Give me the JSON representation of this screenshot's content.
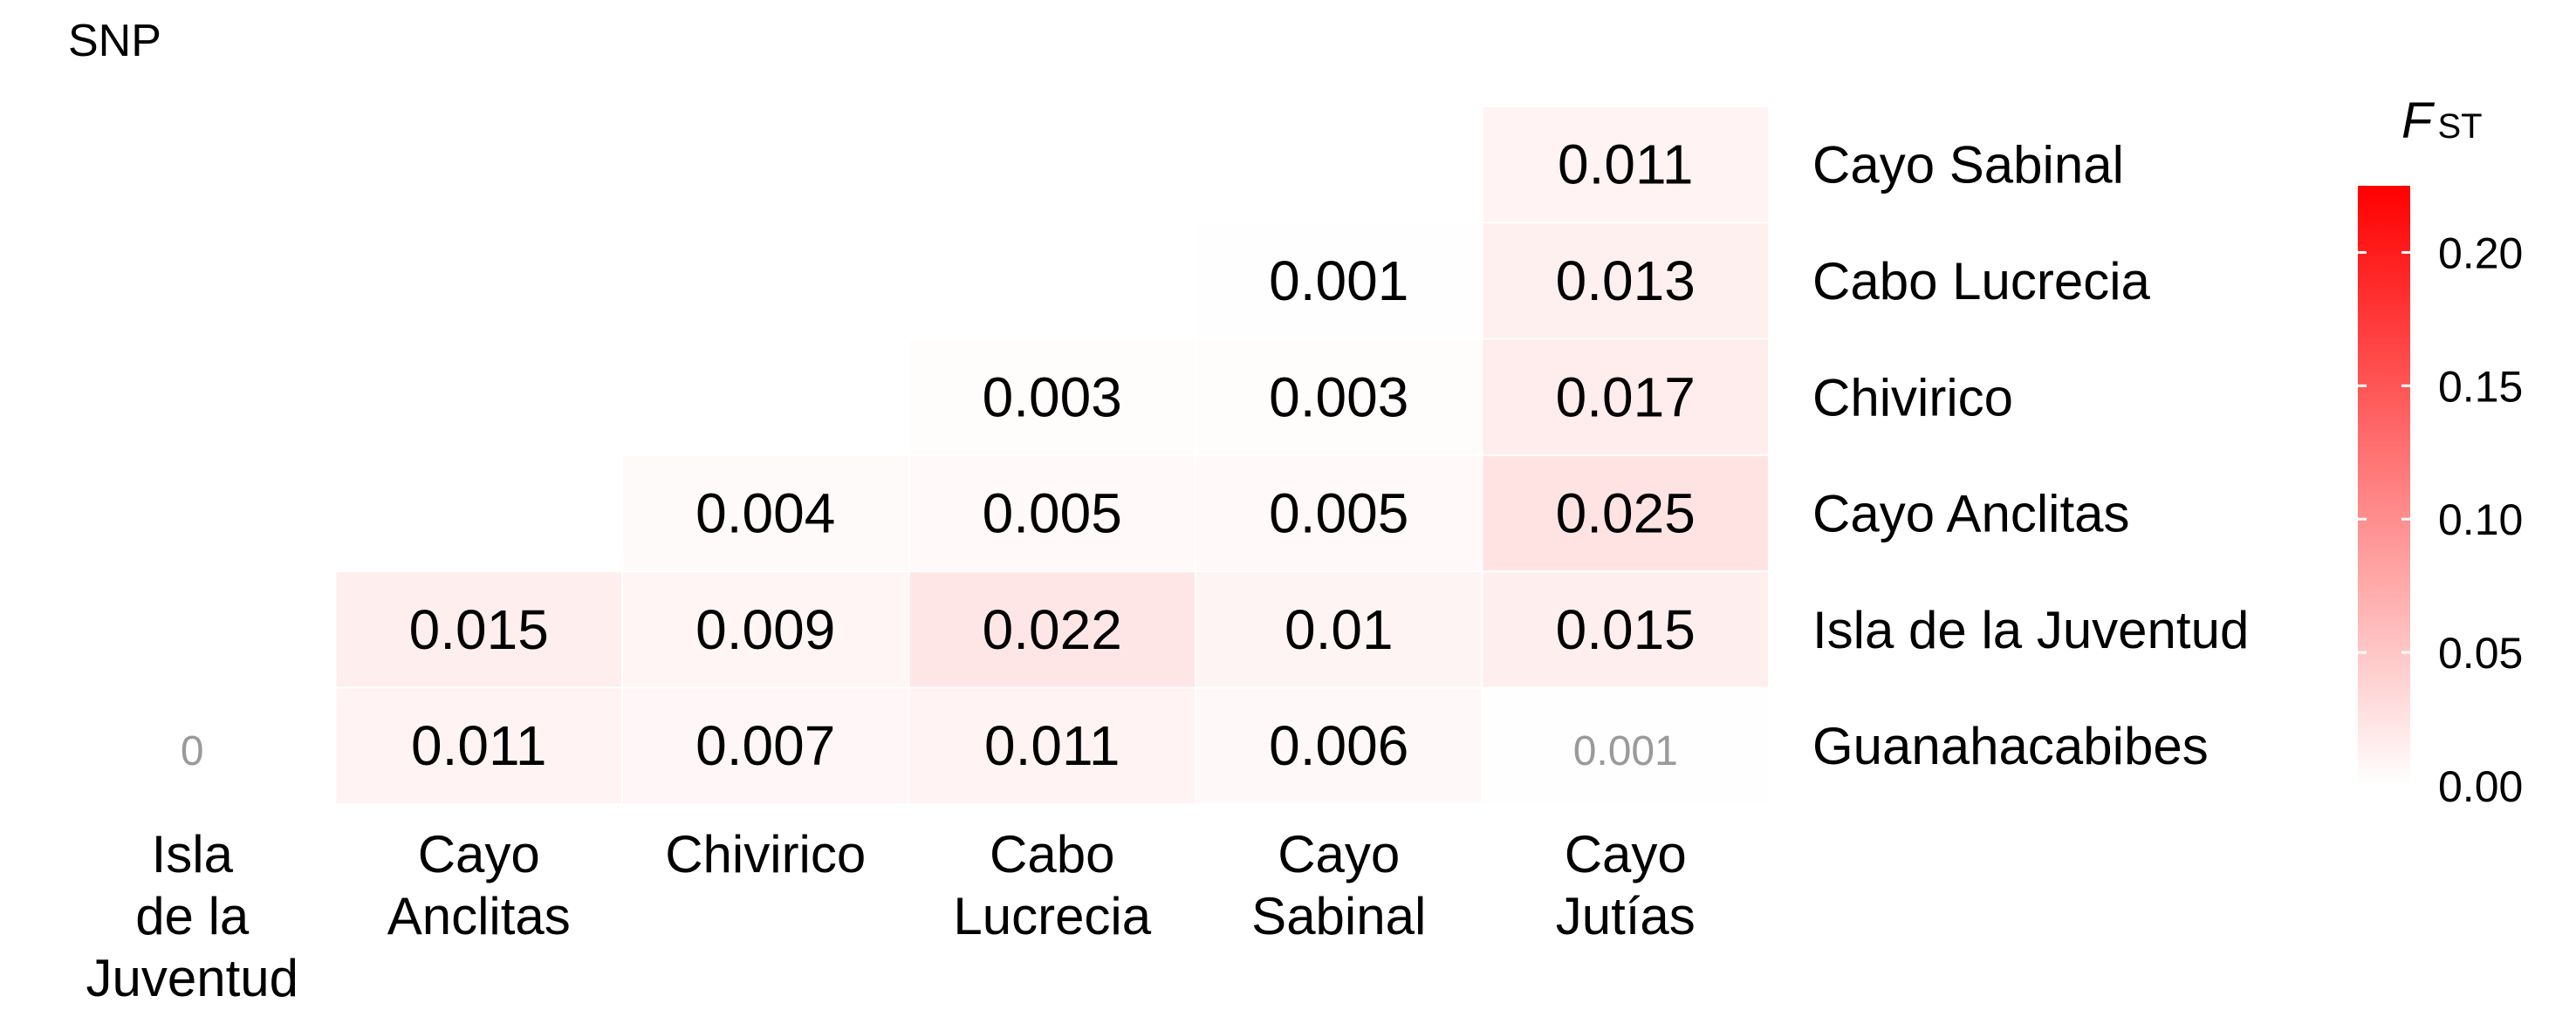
{
  "chart_data": {
    "type": "heatmap",
    "title": "SNP",
    "x_labels": [
      [
        "Isla",
        "de la",
        "Juventud"
      ],
      [
        "Cayo",
        "Anclitas"
      ],
      [
        "Chivirico"
      ],
      [
        "Cabo",
        "Lucrecia"
      ],
      [
        "Cayo",
        "Sabinal"
      ],
      [
        "Cayo",
        "Jutías"
      ]
    ],
    "y_labels": [
      "Cayo Sabinal",
      "Cabo Lucrecia",
      "Chivirico",
      "Cayo Anclitas",
      "Isla de la Juventud",
      "Guanahacabibes"
    ],
    "cells": [
      {
        "row": 0,
        "col": 5,
        "value": 0.011,
        "label": "0.011"
      },
      {
        "row": 1,
        "col": 4,
        "value": 0.001,
        "label": "0.001"
      },
      {
        "row": 1,
        "col": 5,
        "value": 0.013,
        "label": "0.013"
      },
      {
        "row": 2,
        "col": 3,
        "value": 0.003,
        "label": "0.003"
      },
      {
        "row": 2,
        "col": 4,
        "value": 0.003,
        "label": "0.003"
      },
      {
        "row": 2,
        "col": 5,
        "value": 0.017,
        "label": "0.017"
      },
      {
        "row": 3,
        "col": 2,
        "value": 0.004,
        "label": "0.004"
      },
      {
        "row": 3,
        "col": 3,
        "value": 0.005,
        "label": "0.005"
      },
      {
        "row": 3,
        "col": 4,
        "value": 0.005,
        "label": "0.005"
      },
      {
        "row": 3,
        "col": 5,
        "value": 0.025,
        "label": "0.025"
      },
      {
        "row": 4,
        "col": 1,
        "value": 0.015,
        "label": "0.015"
      },
      {
        "row": 4,
        "col": 2,
        "value": 0.009,
        "label": "0.009"
      },
      {
        "row": 4,
        "col": 3,
        "value": 0.022,
        "label": "0.022"
      },
      {
        "row": 4,
        "col": 4,
        "value": 0.01,
        "label": "0.01"
      },
      {
        "row": 4,
        "col": 5,
        "value": 0.015,
        "label": "0.015"
      },
      {
        "row": 5,
        "col": 0,
        "value": 0,
        "label": "0",
        "muted": true
      },
      {
        "row": 5,
        "col": 1,
        "value": 0.011,
        "label": "0.011"
      },
      {
        "row": 5,
        "col": 2,
        "value": 0.007,
        "label": "0.007"
      },
      {
        "row": 5,
        "col": 3,
        "value": 0.011,
        "label": "0.011"
      },
      {
        "row": 5,
        "col": 4,
        "value": 0.006,
        "label": "0.006"
      },
      {
        "row": 5,
        "col": 5,
        "value": 0.001,
        "label": "0.001",
        "muted": true
      }
    ],
    "legend": {
      "title_main": "F",
      "title_sub": "ST",
      "ticks": [
        0.0,
        0.05,
        0.1,
        0.15,
        0.2
      ],
      "tick_labels": [
        "0.00",
        "0.05",
        "0.10",
        "0.15",
        "0.20"
      ],
      "range": [
        0,
        0.225
      ],
      "position": "right"
    },
    "colors": {
      "low": "#ffffff",
      "high": "#ff0000",
      "text": "#000000",
      "muted_text": "#9a9a9a"
    }
  }
}
